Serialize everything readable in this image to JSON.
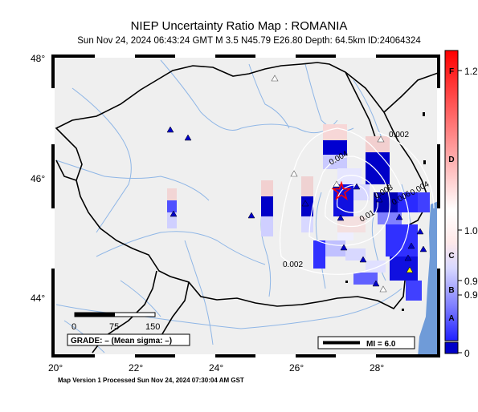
{
  "header": {
    "title": "NIEP Uncertainty Ratio Map : ROMANIA",
    "subtitle": "Sun Nov 24, 2024 06:43:24 GMT   M 3.5   N45.79 E26.80   Depth: 64.5km   ID:24064324"
  },
  "map": {
    "lon_ticks": [
      "20°",
      "22°",
      "24°",
      "26°",
      "28°"
    ],
    "lat_ticks": [
      "48°",
      "46°",
      "44°"
    ],
    "contour_labels": [
      "0.002",
      "0.004",
      "0.004",
      "0.006",
      "0.008",
      "0.01",
      "0.002"
    ],
    "scale_bar": {
      "labels": [
        "0",
        "75",
        "150"
      ]
    },
    "grade_box": "GRADE: – (Mean sigma: –)",
    "mi_legend": "MI = 6.0",
    "colors": {
      "land": "#efefef",
      "sea": "#6f9bd8",
      "rivers": "#8fb6e6",
      "border": "#000000",
      "contours": "#ffffff"
    }
  },
  "colorbar": {
    "right_labels": [
      "1.2",
      "1.0",
      "0.9",
      "0.9",
      "0"
    ],
    "letters": [
      "F",
      "D",
      "C",
      "B",
      "A"
    ],
    "colors": {
      "top": "#ff0000",
      "middle": "#ffffff",
      "low": "#4040ff",
      "bottom": "#0000c8"
    }
  },
  "footer": {
    "text": "Map Version 1 Processed Sun Nov 24, 2024 07:30:04 AM GST"
  }
}
